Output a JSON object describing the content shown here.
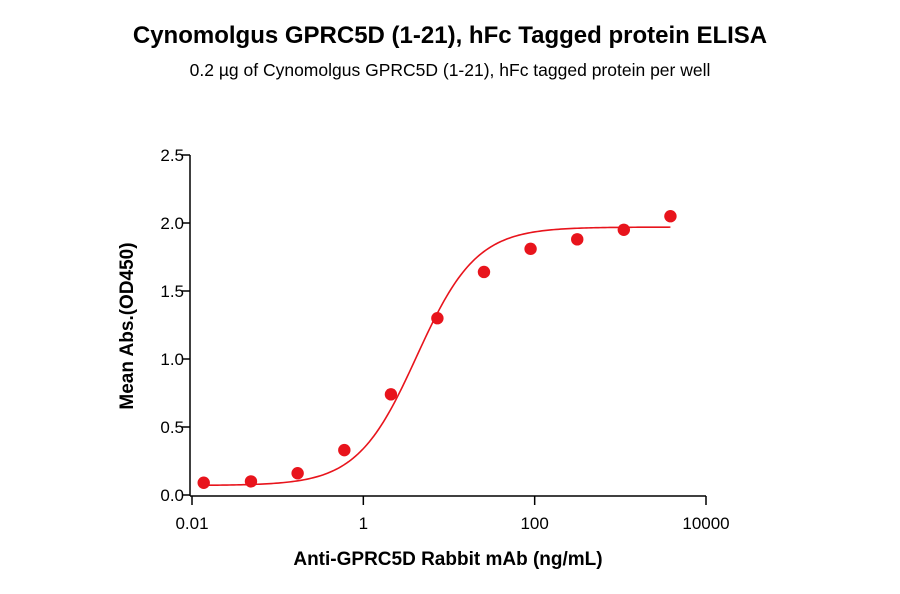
{
  "chart_data": {
    "type": "scatter",
    "title": "Cynomolgus GPRC5D (1-21), hFc Tagged protein ELISA",
    "subtitle": "0.2 µg of Cynomolgus GPRC5D (1-21), hFc tagged protein per well",
    "xlabel": "Anti-GPRC5D Rabbit mAb (ng/mL)",
    "ylabel": "Mean Abs.(OD450)",
    "x_scale": "log",
    "xlim": [
      0.01,
      10000
    ],
    "ylim": [
      0,
      2.5
    ],
    "x_ticks": [
      {
        "value": 0.01,
        "label": "0.01"
      },
      {
        "value": 1,
        "label": "1"
      },
      {
        "value": 100,
        "label": "100"
      },
      {
        "value": 10000,
        "label": "10000"
      }
    ],
    "y_ticks": [
      {
        "value": 0,
        "label": "0.0"
      },
      {
        "value": 0.5,
        "label": "0.5"
      },
      {
        "value": 1.0,
        "label": "1.0"
      },
      {
        "value": 1.5,
        "label": "1.5"
      },
      {
        "value": 2.0,
        "label": "2.0"
      },
      {
        "value": 2.5,
        "label": "2.5"
      }
    ],
    "grid": false,
    "color": "#e8141c",
    "series": [
      {
        "x": [
          0.0137,
          0.0488,
          0.171,
          0.6,
          2.1,
          7.32,
          25.6,
          89.6,
          314,
          1098,
          3844
        ],
        "y": [
          0.09,
          0.1,
          0.16,
          0.33,
          0.74,
          1.3,
          1.64,
          1.81,
          1.88,
          1.95,
          2.05
        ],
        "fit": {
          "model": "4PL",
          "bottom": 0.07,
          "top": 1.97,
          "ec50": 4.2,
          "hill": 1.25,
          "x_range": [
            0.0137,
            3844
          ]
        }
      }
    ]
  }
}
